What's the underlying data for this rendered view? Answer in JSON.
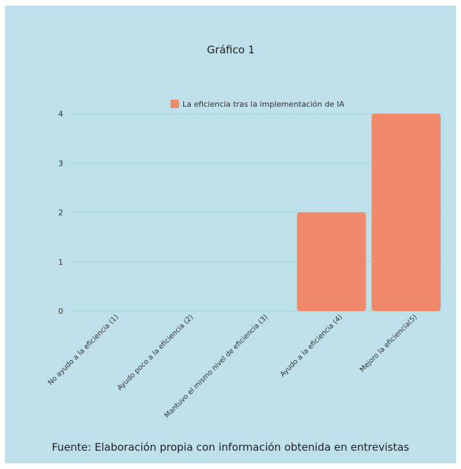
{
  "caption": "Fuente: Elaboración propia con información obtenida en entrevistas",
  "colors": {
    "background": "#bde0ea",
    "bar": "#f0896a",
    "gridline": "#a6d1de"
  },
  "chart_data": {
    "type": "bar",
    "title": "Gráfico 1",
    "xlabel": "",
    "ylabel": "",
    "categories": [
      "No ayudo a la eficiencia (1)",
      "Ayudo poco a la eficiencia (2)",
      "Mantuvo el mismo nivel de eficiencia (3)",
      "Ayudo a la eficiencia (4)",
      "Mejoro la eficiencia(5)"
    ],
    "series": [
      {
        "name": "La eficiencia tras la implementación de IA",
        "values": [
          0,
          0,
          0,
          2,
          4
        ]
      }
    ],
    "ylim": [
      0,
      4
    ],
    "yticks": [
      "0",
      "1",
      "2",
      "3",
      "4"
    ],
    "grid": true,
    "legend_position": "top-center"
  }
}
